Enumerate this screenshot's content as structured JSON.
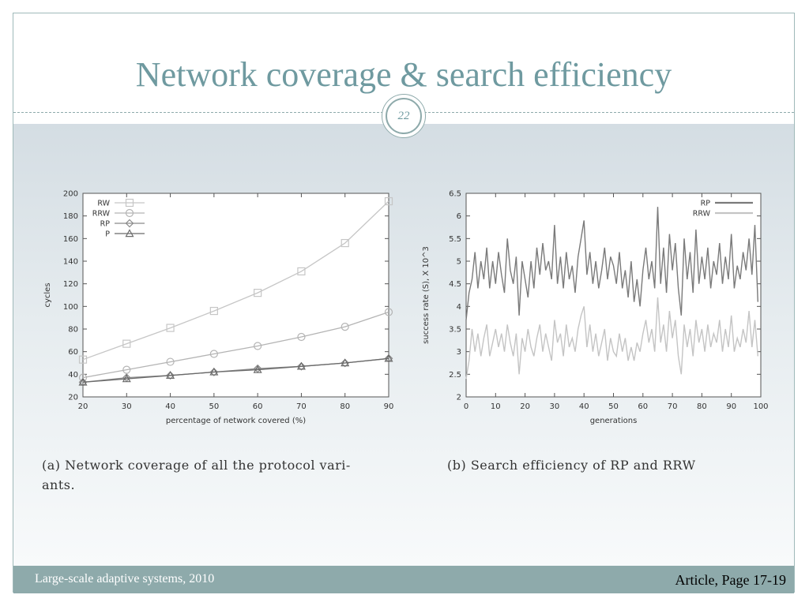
{
  "slide": {
    "title": "Network coverage & search efficiency",
    "page_number": "22",
    "footer_left": "Large-scale adaptive systems, 2010",
    "footer_right": "Article, Page 17-19"
  },
  "captions": {
    "a_line1": "(a) Network coverage of all the protocol vari-",
    "a_line2": "ants.",
    "b": "(b) Search efficiency of RP and RRW"
  },
  "colors": {
    "accent": "#8eaaab",
    "title": "#6f9aa0"
  },
  "chart_data": [
    {
      "type": "line",
      "xlabel": "percentage of network covered (%)",
      "ylabel": "cycles",
      "xlim": [
        20,
        90
      ],
      "ylim": [
        20,
        200
      ],
      "xticks": [
        20,
        30,
        40,
        50,
        60,
        70,
        80,
        90
      ],
      "yticks": [
        20,
        40,
        60,
        80,
        100,
        120,
        140,
        160,
        180,
        200
      ],
      "legend_position": "top-left",
      "x": [
        20,
        30,
        40,
        50,
        60,
        70,
        80,
        90
      ],
      "series": [
        {
          "name": "RW",
          "marker": "square",
          "color": "#c6c6c6",
          "values": [
            53,
            67,
            81,
            96,
            112,
            131,
            156,
            193
          ]
        },
        {
          "name": "RRW",
          "marker": "circle",
          "color": "#b4b4b4",
          "values": [
            37,
            44,
            51,
            58,
            65,
            73,
            82,
            95
          ]
        },
        {
          "name": "RP",
          "marker": "diamond",
          "color": "#8a8a8a",
          "values": [
            33,
            37,
            39,
            42,
            45,
            47,
            50,
            54
          ]
        },
        {
          "name": "P",
          "marker": "triangle",
          "color": "#6a6a6a",
          "values": [
            33,
            36,
            39,
            42,
            44,
            47,
            50,
            54
          ]
        }
      ]
    },
    {
      "type": "line",
      "xlabel": "generations",
      "ylabel": "success rate (S), X 10^3",
      "xlim": [
        0,
        100
      ],
      "ylim": [
        2,
        6.5
      ],
      "xticks": [
        0,
        10,
        20,
        30,
        40,
        50,
        60,
        70,
        80,
        90,
        100
      ],
      "yticks": [
        2,
        2.5,
        3,
        3.5,
        4,
        4.5,
        5,
        5.5,
        6,
        6.5
      ],
      "legend_position": "top-right",
      "series": [
        {
          "name": "RP",
          "color": "#7a7a7a",
          "values": [
            3.7,
            4.3,
            4.6,
            5.2,
            4.4,
            5.0,
            4.6,
            5.3,
            4.4,
            5.0,
            4.5,
            5.2,
            4.7,
            4.3,
            5.5,
            4.8,
            4.5,
            5.1,
            3.8,
            5.0,
            4.6,
            4.2,
            5.0,
            4.4,
            5.3,
            4.7,
            5.4,
            4.8,
            5.0,
            4.6,
            5.8,
            4.5,
            5.1,
            4.4,
            5.2,
            4.6,
            4.9,
            4.3,
            5.1,
            5.5,
            5.9,
            4.7,
            5.2,
            4.5,
            5.0,
            4.4,
            4.8,
            5.3,
            4.6,
            5.1,
            4.9,
            4.5,
            5.2,
            4.4,
            4.8,
            4.2,
            5.0,
            4.1,
            4.6,
            4.0,
            4.8,
            5.3,
            4.6,
            5.0,
            4.4,
            6.2,
            4.5,
            5.3,
            4.3,
            5.6,
            4.8,
            5.4,
            4.4,
            3.8,
            5.5,
            4.6,
            5.2,
            4.3,
            5.7,
            4.5,
            5.1,
            4.6,
            5.3,
            4.4,
            5.0,
            4.7,
            5.4,
            4.5,
            5.1,
            4.6,
            5.6,
            4.4,
            4.9,
            4.6,
            5.2,
            4.8,
            5.5,
            4.7,
            5.8,
            4.1
          ]
        },
        {
          "name": "RRW",
          "color": "#c4c4c4",
          "values": [
            2.4,
            2.8,
            3.5,
            3.0,
            3.4,
            2.9,
            3.3,
            3.6,
            2.9,
            3.2,
            3.5,
            3.1,
            3.4,
            3.0,
            3.6,
            3.2,
            2.9,
            3.4,
            2.5,
            3.3,
            3.0,
            3.5,
            3.1,
            2.9,
            3.3,
            3.6,
            3.0,
            3.4,
            3.1,
            2.8,
            3.7,
            3.2,
            3.4,
            2.9,
            3.6,
            3.1,
            3.3,
            3.0,
            3.5,
            3.8,
            4.0,
            3.1,
            3.6,
            3.0,
            3.4,
            2.9,
            3.2,
            3.5,
            2.8,
            3.3,
            3.0,
            2.9,
            3.4,
            3.0,
            3.3,
            2.8,
            3.1,
            2.8,
            3.2,
            3.0,
            3.4,
            3.7,
            3.2,
            3.5,
            3.0,
            4.2,
            3.2,
            3.6,
            3.0,
            3.9,
            3.3,
            3.7,
            2.9,
            2.5,
            3.6,
            3.1,
            3.5,
            2.9,
            3.7,
            3.2,
            3.5,
            3.0,
            3.6,
            3.1,
            3.4,
            3.2,
            3.7,
            3.0,
            3.5,
            3.1,
            3.8,
            3.0,
            3.3,
            3.1,
            3.5,
            3.2,
            3.9,
            3.1,
            3.7,
            2.9
          ]
        }
      ]
    }
  ]
}
